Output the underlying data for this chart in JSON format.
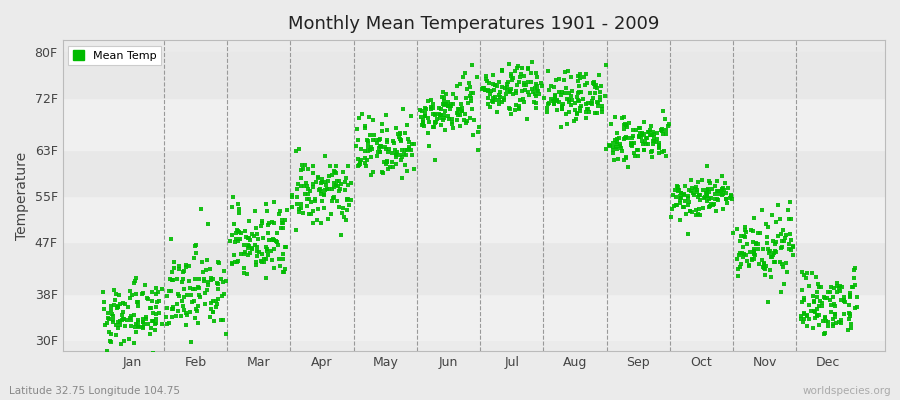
{
  "title": "Monthly Mean Temperatures 1901 - 2009",
  "ylabel": "Temperature",
  "subtitle": "Latitude 32.75 Longitude 104.75",
  "watermark": "worldspecies.org",
  "legend_label": "Mean Temp",
  "dot_color": "#00bb00",
  "background_color": "#ebebeb",
  "plot_bg_color": "#ebebeb",
  "band_color_light": "#f5f5f5",
  "band_color_dark": "#e0e0e0",
  "ytick_labels": [
    "30F",
    "38F",
    "47F",
    "55F",
    "63F",
    "72F",
    "80F"
  ],
  "ytick_values": [
    30,
    38,
    47,
    55,
    63,
    72,
    80
  ],
  "ylim": [
    28,
    82
  ],
  "xlim": [
    -0.6,
    12.4
  ],
  "months": [
    "Jan",
    "Feb",
    "Mar",
    "Apr",
    "May",
    "Jun",
    "Jul",
    "Aug",
    "Sep",
    "Oct",
    "Nov",
    "Dec"
  ],
  "month_means": [
    34.5,
    38.5,
    47.0,
    55.5,
    63.5,
    69.5,
    73.5,
    72.0,
    64.5,
    55.0,
    46.0,
    36.5
  ],
  "month_stds": [
    3.2,
    4.2,
    4.2,
    3.5,
    3.0,
    2.8,
    2.5,
    2.5,
    2.5,
    2.2,
    3.5,
    3.2
  ],
  "n_points": 109,
  "marker_size": 4.0,
  "vline_color": "#999999",
  "hband_colors": [
    "#f0f0f0",
    "#e8e8e8"
  ],
  "hband_ranges": [
    [
      30,
      38
    ],
    [
      38,
      47
    ],
    [
      47,
      55
    ],
    [
      55,
      63
    ],
    [
      63,
      72
    ],
    [
      72,
      80
    ]
  ]
}
